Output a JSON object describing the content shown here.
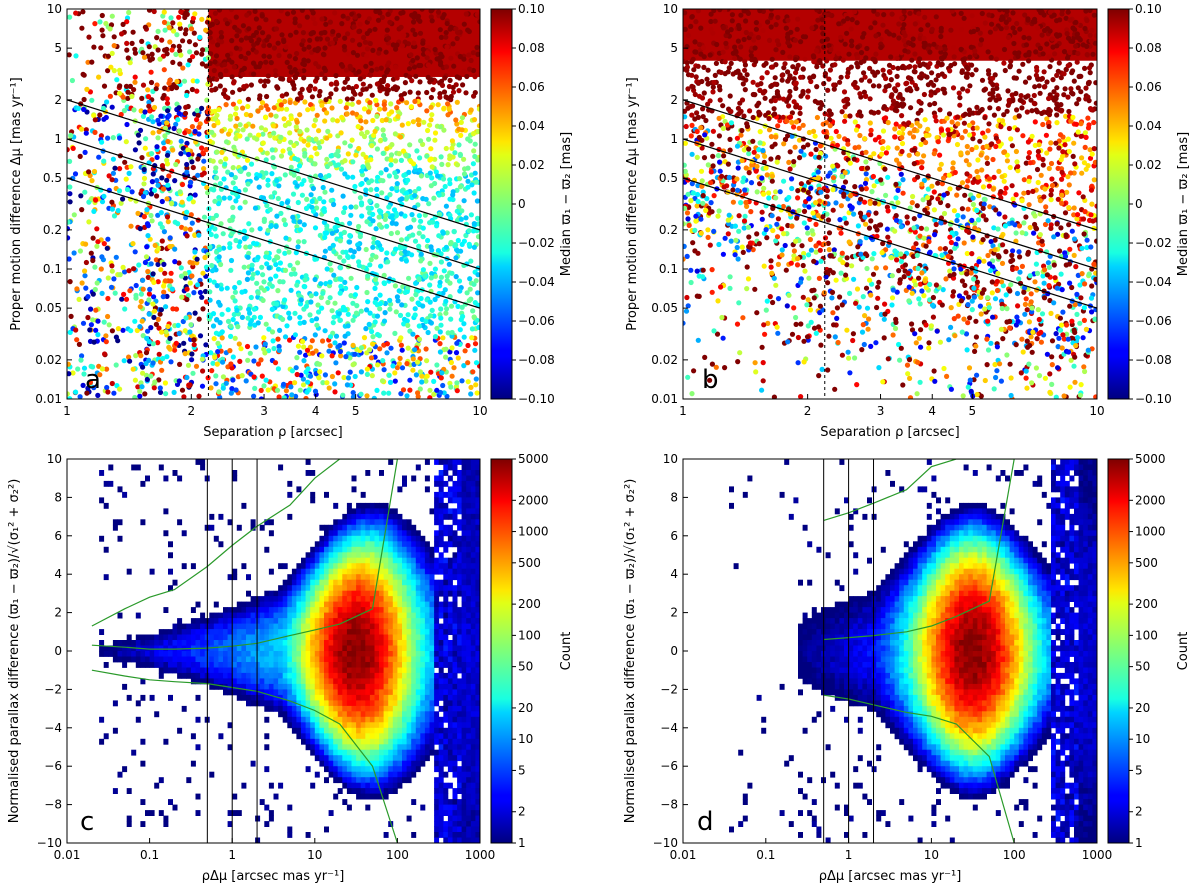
{
  "chart_data": [
    {
      "panel": "a",
      "type": "scatter",
      "xlabel": "Separation ρ [arcsec]",
      "ylabel": "Proper motion difference Δμ [mas yr⁻¹]",
      "xscale": "log",
      "yscale": "log",
      "xlim": [
        1,
        10
      ],
      "ylim": [
        0.01,
        10
      ],
      "xticks": [
        {
          "value": 1,
          "label": "1"
        },
        {
          "value": 2,
          "label": "2"
        },
        {
          "value": 3,
          "label": "3"
        },
        {
          "value": 4,
          "label": "4"
        },
        {
          "value": 5,
          "label": "5"
        },
        {
          "value": 10,
          "label": "10"
        }
      ],
      "yticks": [
        {
          "value": 0.01,
          "label": "0.01"
        },
        {
          "value": 0.02,
          "label": "0.02"
        },
        {
          "value": 0.05,
          "label": "0.05"
        },
        {
          "value": 0.1,
          "label": "0.1"
        },
        {
          "value": 0.2,
          "label": "0.2"
        },
        {
          "value": 0.5,
          "label": "0.5"
        },
        {
          "value": 1,
          "label": "1"
        },
        {
          "value": 2,
          "label": "2"
        },
        {
          "value": 5,
          "label": "5"
        },
        {
          "value": 10,
          "label": "10"
        }
      ],
      "reference_lines": [
        {
          "name": "ρΔμ = 2",
          "points": [
            [
              1,
              2
            ],
            [
              10,
              0.2
            ]
          ]
        },
        {
          "name": "ρΔμ = 1",
          "points": [
            [
              1,
              1
            ],
            [
              10,
              0.1
            ]
          ]
        },
        {
          "name": "ρΔμ = 0.5",
          "points": [
            [
              1,
              0.5
            ],
            [
              10,
              0.05
            ]
          ]
        }
      ],
      "vertical_dashed_line_x": 2.2,
      "colorbar": {
        "label": "Median ϖ₁ − ϖ₂ [mas]",
        "scale": "linear",
        "range": [
          -0.1,
          0.1
        ],
        "ticks": [
          {
            "value": 0.1,
            "label": "0.10"
          },
          {
            "value": 0.08,
            "label": "0.08"
          },
          {
            "value": 0.06,
            "label": "0.06"
          },
          {
            "value": 0.04,
            "label": "0.04"
          },
          {
            "value": 0.02,
            "label": "0.02"
          },
          {
            "value": 0,
            "label": "0"
          },
          {
            "value": -0.02,
            "label": "−0.02"
          },
          {
            "value": -0.04,
            "label": "−0.04"
          },
          {
            "value": -0.06,
            "label": "−0.06"
          },
          {
            "value": -0.08,
            "label": "−0.08"
          },
          {
            "value": -0.1,
            "label": "−0.10"
          }
        ],
        "colormap": "jet"
      },
      "description_of_distribution": "Points everywhere; high Δμ (>2) saturated red (median ≈ +0.1); region rho>2, 0.03<Δμ<1 mostly cyan/green (≈ −0.02..0); left rho<2 noisy mixed colors"
    },
    {
      "panel": "b",
      "type": "scatter",
      "xlabel": "Separation ρ [arcsec]",
      "ylabel": "Proper motion difference Δμ [mas yr⁻¹]",
      "xscale": "log",
      "yscale": "log",
      "xlim": [
        1,
        10
      ],
      "ylim": [
        0.01,
        10
      ],
      "xticks": [
        {
          "value": 1,
          "label": "1"
        },
        {
          "value": 2,
          "label": "2"
        },
        {
          "value": 3,
          "label": "3"
        },
        {
          "value": 4,
          "label": "4"
        },
        {
          "value": 5,
          "label": "5"
        },
        {
          "value": 10,
          "label": "10"
        }
      ],
      "yticks": [
        {
          "value": 0.01,
          "label": "0.01"
        },
        {
          "value": 0.02,
          "label": "0.02"
        },
        {
          "value": 0.05,
          "label": "0.05"
        },
        {
          "value": 0.1,
          "label": "0.1"
        },
        {
          "value": 0.2,
          "label": "0.2"
        },
        {
          "value": 0.5,
          "label": "0.5"
        },
        {
          "value": 1,
          "label": "1"
        },
        {
          "value": 2,
          "label": "2"
        },
        {
          "value": 5,
          "label": "5"
        },
        {
          "value": 10,
          "label": "10"
        }
      ],
      "reference_lines": [
        {
          "name": "ρΔμ = 2",
          "points": [
            [
              1,
              2
            ],
            [
              10,
              0.2
            ]
          ]
        },
        {
          "name": "ρΔμ = 1",
          "points": [
            [
              1,
              1
            ],
            [
              10,
              0.1
            ]
          ]
        },
        {
          "name": "ρΔμ = 0.5",
          "points": [
            [
              1,
              0.5
            ],
            [
              10,
              0.05
            ]
          ]
        }
      ],
      "vertical_dashed_line_x": 2.2,
      "colorbar": {
        "label": "Median ϖ₁ − ϖ₂ [mas]",
        "scale": "linear",
        "range": [
          -0.1,
          0.1
        ],
        "ticks": [
          {
            "value": 0.1,
            "label": "0.10"
          },
          {
            "value": 0.08,
            "label": "0.08"
          },
          {
            "value": 0.06,
            "label": "0.06"
          },
          {
            "value": 0.04,
            "label": "0.04"
          },
          {
            "value": 0.02,
            "label": "0.02"
          },
          {
            "value": 0,
            "label": "0"
          },
          {
            "value": -0.02,
            "label": "−0.02"
          },
          {
            "value": -0.04,
            "label": "−0.04"
          },
          {
            "value": -0.06,
            "label": "−0.06"
          },
          {
            "value": -0.08,
            "label": "−0.08"
          },
          {
            "value": -0.1,
            "label": "−0.10"
          }
        ],
        "colormap": "jet"
      },
      "description_of_distribution": "Upper region saturated red; band of mixed color points between lines; sparse scatter below Δμ 0.1 and empty lower-left"
    },
    {
      "panel": "c",
      "type": "heatmap",
      "xlabel": "ρΔμ [arcsec mas yr⁻¹]",
      "ylabel": "Normalised parallax difference (ϖ₁ − ϖ₂)/√(σ₁² + σ₂²)",
      "xscale": "log",
      "yscale": "linear",
      "xlim": [
        0.01,
        1000
      ],
      "ylim": [
        -10,
        10
      ],
      "xticks": [
        {
          "value": 0.01,
          "label": "0.01"
        },
        {
          "value": 0.1,
          "label": "0.1"
        },
        {
          "value": 1,
          "label": "1"
        },
        {
          "value": 10,
          "label": "10"
        },
        {
          "value": 100,
          "label": "100"
        },
        {
          "value": 1000,
          "label": "1000"
        }
      ],
      "yticks": [
        {
          "value": -10,
          "label": "−10"
        },
        {
          "value": -8,
          "label": "−8"
        },
        {
          "value": -6,
          "label": "−6"
        },
        {
          "value": -4,
          "label": "−4"
        },
        {
          "value": -2,
          "label": "−2"
        },
        {
          "value": 0,
          "label": "0"
        },
        {
          "value": 2,
          "label": "2"
        },
        {
          "value": 4,
          "label": "4"
        },
        {
          "value": 6,
          "label": "6"
        },
        {
          "value": 8,
          "label": "8"
        },
        {
          "value": 10,
          "label": "10"
        }
      ],
      "vertical_lines_x": [
        0.5,
        1,
        2
      ],
      "green_curves": {
        "x": [
          0.02,
          0.05,
          0.1,
          0.2,
          0.5,
          1,
          2,
          5,
          10,
          20,
          50,
          100
        ],
        "median": [
          0.3,
          0.2,
          0.1,
          0.1,
          0.15,
          0.25,
          0.4,
          0.8,
          1.1,
          1.4,
          2.2,
          10
        ],
        "lower": [
          -1.0,
          -1.3,
          -1.5,
          -1.6,
          -1.7,
          -1.9,
          -2.1,
          -2.6,
          -3.1,
          -3.8,
          -6.0,
          -10
        ],
        "upper": [
          1.3,
          2.2,
          2.8,
          3.2,
          4.4,
          5.5,
          6.5,
          7.6,
          9.0,
          10,
          10,
          10
        ]
      },
      "colorbar": {
        "label": "Count",
        "scale": "log",
        "range": [
          1,
          5000
        ],
        "ticks": [
          {
            "value": 5000,
            "label": "5000"
          },
          {
            "value": 2000,
            "label": "2000"
          },
          {
            "value": 1000,
            "label": "1000"
          },
          {
            "value": 500,
            "label": "500"
          },
          {
            "value": 200,
            "label": "200"
          },
          {
            "value": 100,
            "label": "100"
          },
          {
            "value": 50,
            "label": "50"
          },
          {
            "value": 20,
            "label": "20"
          },
          {
            "value": 10,
            "label": "10"
          },
          {
            "value": 5,
            "label": "5"
          },
          {
            "value": 2,
            "label": "2"
          },
          {
            "value": 1,
            "label": "1"
          }
        ],
        "colormap": "jet"
      },
      "description_of_distribution": "Funnel-shaped density, narrow near x=0.03 widening rightward; peak (orange) around x≈30–50, y≈0; ends sharply near x≈600"
    },
    {
      "panel": "d",
      "type": "heatmap",
      "xlabel": "ρΔμ [arcsec mas yr⁻¹]",
      "ylabel": "Normalised parallax difference (ϖ₁ − ϖ₂)/√(σ₁² + σ₂²)",
      "xscale": "log",
      "yscale": "linear",
      "xlim": [
        0.01,
        1000
      ],
      "ylim": [
        -10,
        10
      ],
      "xticks": [
        {
          "value": 0.01,
          "label": "0.01"
        },
        {
          "value": 0.1,
          "label": "0.1"
        },
        {
          "value": 1,
          "label": "1"
        },
        {
          "value": 10,
          "label": "10"
        },
        {
          "value": 100,
          "label": "100"
        },
        {
          "value": 1000,
          "label": "1000"
        }
      ],
      "yticks": [
        {
          "value": -10,
          "label": "−10"
        },
        {
          "value": -8,
          "label": "−8"
        },
        {
          "value": -6,
          "label": "−6"
        },
        {
          "value": -4,
          "label": "−4"
        },
        {
          "value": -2,
          "label": "−2"
        },
        {
          "value": 0,
          "label": "0"
        },
        {
          "value": 2,
          "label": "2"
        },
        {
          "value": 4,
          "label": "4"
        },
        {
          "value": 6,
          "label": "6"
        },
        {
          "value": 8,
          "label": "8"
        },
        {
          "value": 10,
          "label": "10"
        }
      ],
      "vertical_lines_x": [
        0.5,
        1,
        2
      ],
      "green_curves": {
        "x": [
          0.5,
          1,
          2,
          5,
          10,
          20,
          50,
          100
        ],
        "median": [
          0.6,
          0.7,
          0.8,
          1.0,
          1.3,
          1.8,
          2.6,
          10
        ],
        "lower": [
          -2.3,
          -2.5,
          -2.8,
          -3.2,
          -3.4,
          -3.8,
          -5.5,
          -10
        ],
        "upper": [
          6.8,
          7.2,
          7.7,
          8.4,
          9.6,
          10,
          10,
          10
        ]
      },
      "colorbar": {
        "label": "Count",
        "scale": "log",
        "range": [
          1,
          5000
        ],
        "ticks": [
          {
            "value": 5000,
            "label": "5000"
          },
          {
            "value": 2000,
            "label": "2000"
          },
          {
            "value": 1000,
            "label": "1000"
          },
          {
            "value": 500,
            "label": "500"
          },
          {
            "value": 200,
            "label": "200"
          },
          {
            "value": 100,
            "label": "100"
          },
          {
            "value": 50,
            "label": "50"
          },
          {
            "value": 20,
            "label": "20"
          },
          {
            "value": 10,
            "label": "10"
          },
          {
            "value": 5,
            "label": "5"
          },
          {
            "value": 2,
            "label": "2"
          },
          {
            "value": 1,
            "label": "1"
          }
        ],
        "colormap": "jet"
      },
      "description_of_distribution": "Like panel c but data only from x≈0.3 upward (few sparse points below); peak orange near x≈30, y≈0; ends near x≈600"
    }
  ]
}
